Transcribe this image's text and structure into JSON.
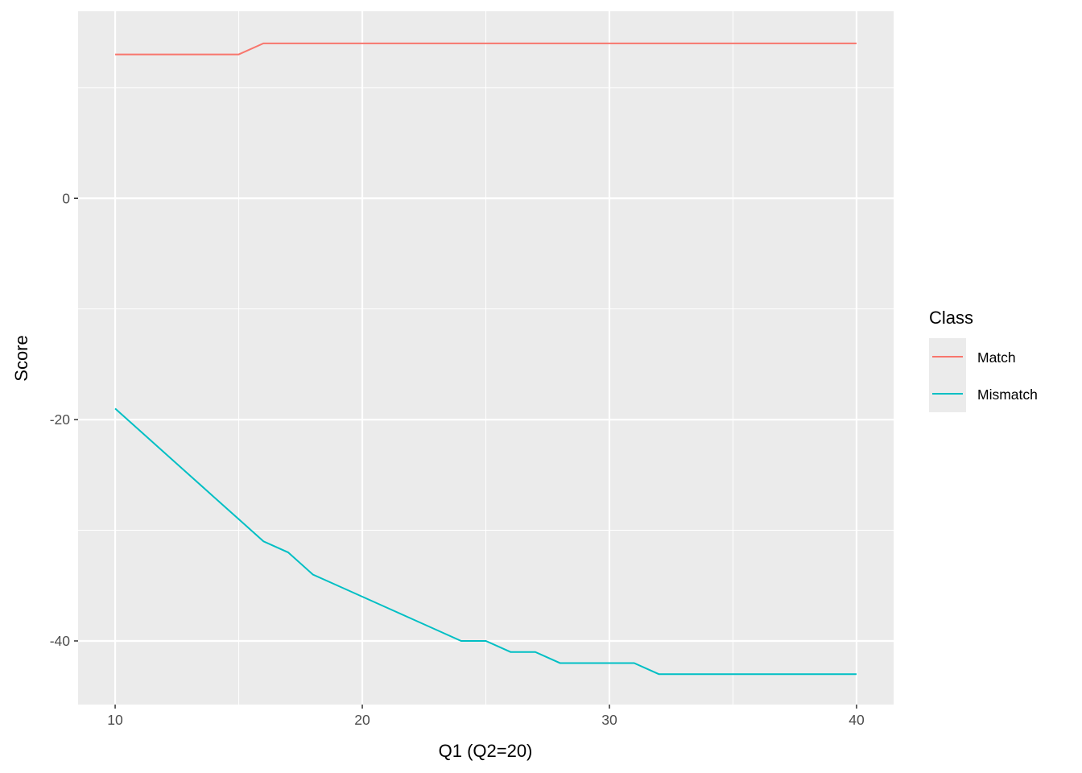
{
  "chart_data": {
    "type": "line",
    "title": "",
    "xlabel": "Q1 (Q2=20)",
    "ylabel": "Score",
    "xlim": [
      8.5,
      41.5
    ],
    "ylim": [
      -45.75,
      16.9
    ],
    "x_ticks": [
      10,
      20,
      30,
      40
    ],
    "y_ticks": [
      0,
      -20,
      -40
    ],
    "x_minor": [
      15,
      25,
      35
    ],
    "y_minor": [
      10,
      -10,
      -30
    ],
    "grid": true,
    "legend": {
      "title": "Class",
      "position": "right"
    },
    "x": [
      10,
      11,
      12,
      13,
      14,
      15,
      16,
      17,
      18,
      19,
      20,
      21,
      22,
      23,
      24,
      25,
      26,
      27,
      28,
      29,
      30,
      31,
      32,
      33,
      34,
      35,
      36,
      37,
      38,
      39,
      40
    ],
    "series": [
      {
        "name": "Match",
        "color": "#F8766D",
        "values": [
          13,
          13,
          13,
          13,
          13,
          13,
          14,
          14,
          14,
          14,
          14,
          14,
          14,
          14,
          14,
          14,
          14,
          14,
          14,
          14,
          14,
          14,
          14,
          14,
          14,
          14,
          14,
          14,
          14,
          14,
          14
        ]
      },
      {
        "name": "Mismatch",
        "color": "#00BFC4",
        "values": [
          -19,
          -21,
          -23,
          -25,
          -27,
          -29,
          -31,
          -32,
          -34,
          -35,
          -36,
          -37,
          -38,
          -39,
          -40,
          -40,
          -41,
          -41,
          -42,
          -42,
          -42,
          -42,
          -43,
          -43,
          -43,
          -43,
          -43,
          -43,
          -43,
          -43,
          -43
        ]
      }
    ]
  }
}
